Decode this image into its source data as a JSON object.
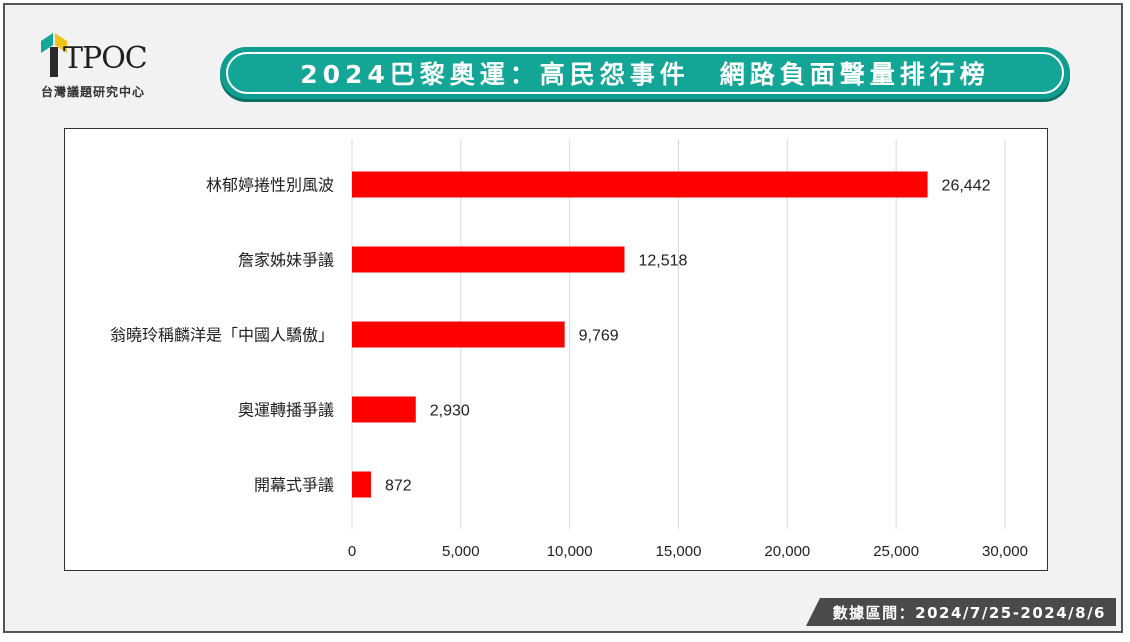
{
  "logo": {
    "name": "TPOC",
    "subtitle": "台灣議題研究中心"
  },
  "header": {
    "title": "2024巴黎奧運：高民怨事件　網路負面聲量排行榜"
  },
  "footer": {
    "date_range": "數據區間：2024/7/25-2024/8/6"
  },
  "colors": {
    "bar": "#ff0000",
    "title_bg": "#13a595",
    "gridline": "#d9d9d9"
  },
  "chart_data": {
    "type": "bar",
    "orientation": "horizontal",
    "categories": [
      "林郁婷捲性別風波",
      "詹家姊妹爭議",
      "翁曉玲稱麟洋是「中國人驕傲」",
      "奧運轉播爭議",
      "開幕式爭議"
    ],
    "values": [
      26442,
      12518,
      9769,
      2930,
      872
    ],
    "value_labels": [
      "26,442",
      "12,518",
      "9,769",
      "2,930",
      "872"
    ],
    "xlim": [
      0,
      30000
    ],
    "x_ticks": [
      0,
      5000,
      10000,
      15000,
      20000,
      25000,
      30000
    ],
    "x_tick_labels": [
      "0",
      "5,000",
      "10,000",
      "15,000",
      "20,000",
      "25,000",
      "30,000"
    ],
    "grid": true,
    "legend": "none"
  }
}
